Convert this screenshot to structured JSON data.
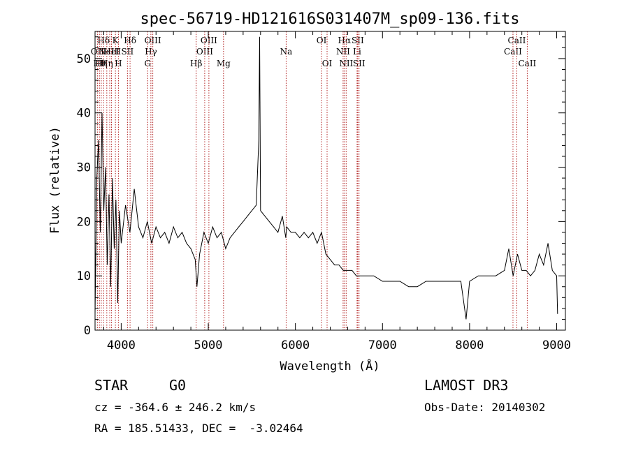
{
  "chart_data": {
    "type": "line",
    "title": "spec-56719-HD121616S031407M_sp09-136.fits",
    "xlabel": "Wavelength (Å)",
    "ylabel": "Flux (relative)",
    "xlim": [
      3700,
      9100
    ],
    "ylim": [
      0,
      55
    ],
    "xticks": [
      4000,
      5000,
      6000,
      7000,
      8000,
      9000
    ],
    "yticks": [
      0,
      10,
      20,
      30,
      40,
      50
    ],
    "grid": false,
    "line_color": "#000000",
    "marker_color": "#b22222",
    "series": [
      {
        "x": [
          3700,
          3720,
          3740,
          3760,
          3780,
          3800,
          3820,
          3840,
          3860,
          3880,
          3900,
          3920,
          3940,
          3960,
          3980,
          4000,
          4050,
          4100,
          4150,
          4200,
          4250,
          4300,
          4350,
          4400,
          4450,
          4500,
          4550,
          4600,
          4650,
          4700,
          4750,
          4800,
          4850,
          4870,
          4900,
          4950,
          5000,
          5050,
          5100,
          5150,
          5200,
          5250,
          5300,
          5350,
          5400,
          5450,
          5500,
          5550,
          5580,
          5590,
          5600,
          5650,
          5700,
          5750,
          5800,
          5850,
          5890,
          5900,
          5950,
          6000,
          6050,
          6100,
          6150,
          6200,
          6250,
          6300,
          6350,
          6400,
          6450,
          6500,
          6550,
          6600,
          6650,
          6700,
          6750,
          6800,
          6900,
          7000,
          7100,
          7200,
          7300,
          7400,
          7500,
          7600,
          7700,
          7800,
          7900,
          7960,
          8000,
          8100,
          8200,
          8300,
          8400,
          8450,
          8500,
          8550,
          8600,
          8650,
          8700,
          8750,
          8800,
          8850,
          8900,
          8950,
          9000,
          9010
        ],
        "y": [
          3,
          28,
          35,
          18,
          40,
          22,
          30,
          12,
          25,
          8,
          28,
          15,
          24,
          5,
          22,
          16,
          23,
          18,
          26,
          19,
          17,
          20,
          16,
          19,
          17,
          18,
          16,
          19,
          17,
          18,
          16,
          15,
          13,
          8,
          14,
          18,
          16,
          19,
          17,
          18,
          15,
          17,
          18,
          19,
          20,
          21,
          22,
          23,
          35,
          54,
          22,
          21,
          20,
          19,
          18,
          21,
          17,
          19,
          18,
          18,
          17,
          18,
          17,
          18,
          16,
          18,
          14,
          13,
          12,
          12,
          11,
          11,
          11,
          10,
          10,
          10,
          10,
          9,
          9,
          9,
          8,
          8,
          9,
          9,
          9,
          9,
          9,
          2,
          9,
          10,
          10,
          10,
          11,
          15,
          10,
          14,
          11,
          11,
          10,
          11,
          14,
          12,
          16,
          11,
          10,
          3
        ]
      }
    ],
    "lines": [
      {
        "x": 3727,
        "label": "OII",
        "row": 2
      },
      {
        "x": 3750,
        "label": "Hθ",
        "row": 3
      },
      {
        "x": 3771,
        "label": "Hη",
        "row": 3
      },
      {
        "x": 3798,
        "label": "Hδ",
        "row": 1
      },
      {
        "x": 3835,
        "label": "Hη",
        "row": 3
      },
      {
        "x": 3869,
        "label": "NeIII",
        "row": 2
      },
      {
        "x": 3889,
        "label": "HeI",
        "row": 2
      },
      {
        "x": 3934,
        "label": "K",
        "row": 1
      },
      {
        "x": 3968,
        "label": "H",
        "row": 3
      },
      {
        "x": 4072,
        "label": "SII",
        "row": 2
      },
      {
        "x": 4102,
        "label": "Hδ",
        "row": 1
      },
      {
        "x": 4304,
        "label": "G",
        "row": 3
      },
      {
        "x": 4341,
        "label": "Hγ",
        "row": 2
      },
      {
        "x": 4363,
        "label": "OIII",
        "row": 1
      },
      {
        "x": 4861,
        "label": "Hβ",
        "row": 3
      },
      {
        "x": 4959,
        "label": "OIII",
        "row": 2
      },
      {
        "x": 5007,
        "label": "OIII",
        "row": 1
      },
      {
        "x": 5175,
        "label": "Mg",
        "row": 3
      },
      {
        "x": 5894,
        "label": "Na",
        "row": 2
      },
      {
        "x": 6300,
        "label": "OI",
        "row": 1
      },
      {
        "x": 6364,
        "label": "OI",
        "row": 3
      },
      {
        "x": 6548,
        "label": "NII",
        "row": 2
      },
      {
        "x": 6563,
        "label": "Hα",
        "row": 1
      },
      {
        "x": 6583,
        "label": "NII",
        "row": 3
      },
      {
        "x": 6708,
        "label": "Li",
        "row": 2
      },
      {
        "x": 6716,
        "label": "SII",
        "row": 1
      },
      {
        "x": 6731,
        "label": "SII",
        "row": 3
      },
      {
        "x": 8498,
        "label": "CaII",
        "row": 2
      },
      {
        "x": 8542,
        "label": "CaII",
        "row": 1
      },
      {
        "x": 8662,
        "label": "CaII",
        "row": 3
      }
    ]
  },
  "info": {
    "object_class": "STAR",
    "subclass": "G0",
    "survey": "LAMOST DR3",
    "redshift": "cz = -364.6 ± 246.2 km/s",
    "obs_date": "Obs-Date: 20140302",
    "coords": "RA = 185.51433, DEC =  -3.02464"
  }
}
